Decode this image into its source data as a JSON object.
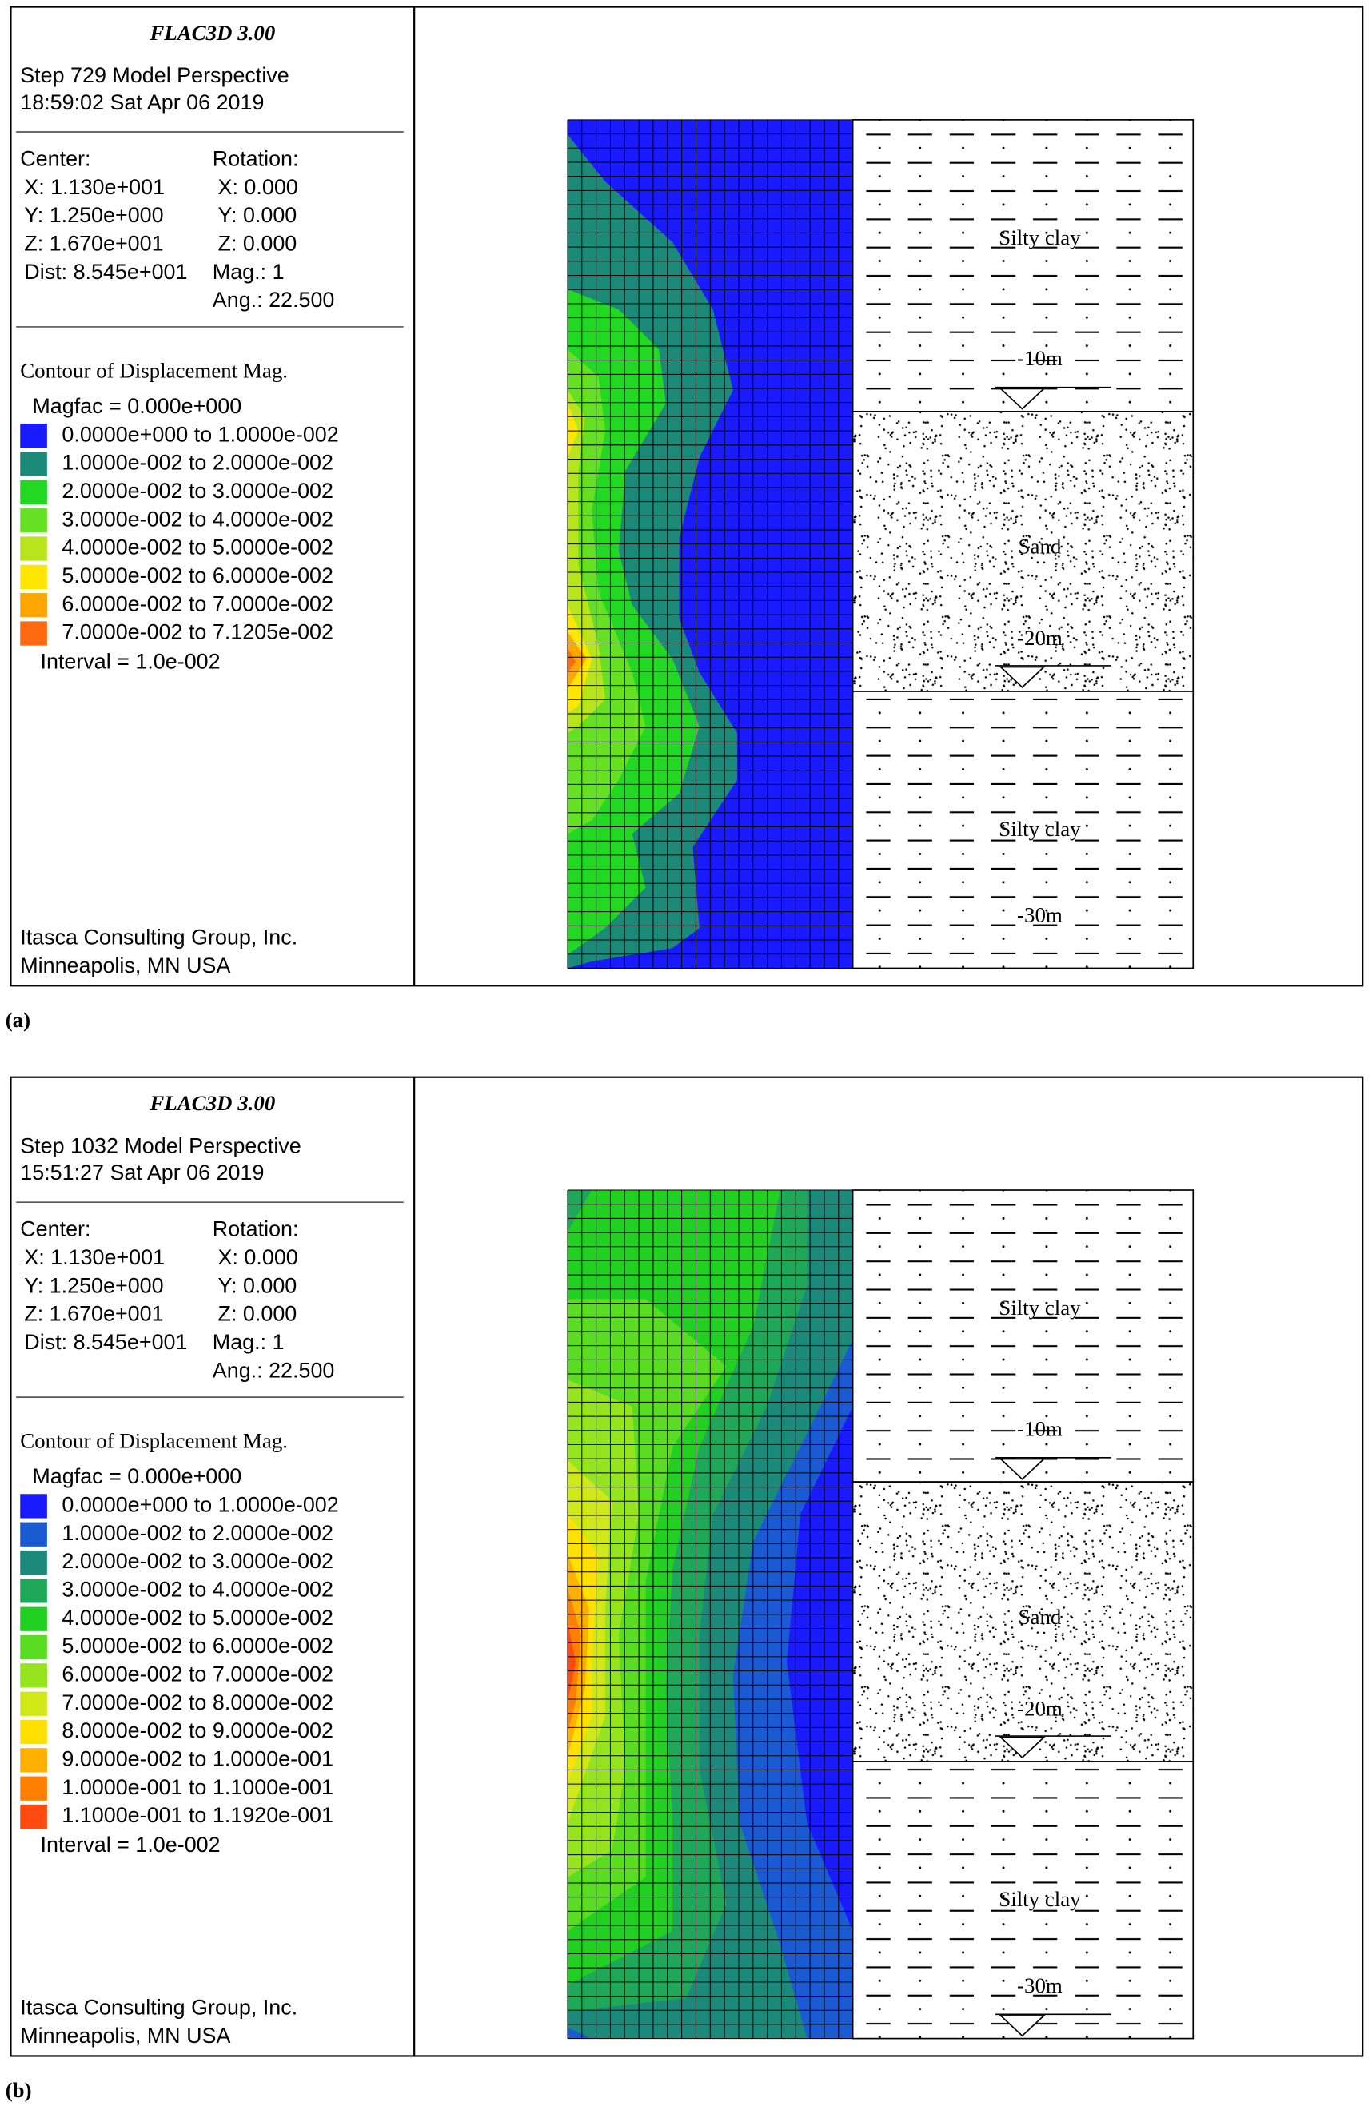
{
  "panels": [
    {
      "caption": "(a)",
      "header": {
        "title": "FLAC3D 3.00",
        "step": "Step 729  Model Perspective",
        "time": "18:59:02 Sat Apr 06 2019"
      },
      "view": {
        "left": [
          "Center:",
          "X: 1.130e+001",
          "Y: 1.250e+000",
          "Z: 1.670e+001",
          "Dist: 8.545e+001"
        ],
        "right": [
          "Rotation:",
          "X:  0.000",
          "Y:  0.000",
          "Z:  0.000",
          "Mag.:      1",
          "Ang.:  22.500"
        ]
      },
      "legend": {
        "title": "Contour of Displacement Mag.",
        "magfac": "Magfac =  0.000e+000",
        "entries": [
          {
            "label": "0.0000e+000 to  1.0000e-002",
            "color": "#1a1aff"
          },
          {
            "label": "1.0000e-002 to  2.0000e-002",
            "color": "#1b8a78"
          },
          {
            "label": "2.0000e-002 to  3.0000e-002",
            "color": "#22d822"
          },
          {
            "label": "3.0000e-002 to  4.0000e-002",
            "color": "#66e022"
          },
          {
            "label": "4.0000e-002 to  5.0000e-002",
            "color": "#b8e41c"
          },
          {
            "label": "5.0000e-002 to  6.0000e-002",
            "color": "#ffe600"
          },
          {
            "label": "6.0000e-002 to  7.0000e-002",
            "color": "#ffa600"
          },
          {
            "label": "7.0000e-002 to  7.1205e-002",
            "color": "#ff6a10"
          }
        ],
        "interval": "Interval =  1.0e-002"
      },
      "footer": [
        "Itasca Consulting Group, Inc.",
        "Minneapolis, MN  USA"
      ],
      "layers": [
        "Silty clay",
        "-10m",
        "Sand",
        "-20m",
        "Silty clay",
        "-30m"
      ]
    },
    {
      "caption": "(b)",
      "header": {
        "title": "FLAC3D 3.00",
        "step": "Step 1032  Model Perspective",
        "time": "15:51:27 Sat Apr 06 2019"
      },
      "view": {
        "left": [
          "Center:",
          "X: 1.130e+001",
          "Y: 1.250e+000",
          "Z: 1.670e+001",
          "Dist: 8.545e+001"
        ],
        "right": [
          "Rotation:",
          "X:  0.000",
          "Y:  0.000",
          "Z:  0.000",
          "Mag.:      1",
          "Ang.:  22.500"
        ]
      },
      "legend": {
        "title": "Contour of Displacement Mag.",
        "magfac": "Magfac =  0.000e+000",
        "entries": [
          {
            "label": "0.0000e+000 to  1.0000e-002",
            "color": "#1a1aff"
          },
          {
            "label": "1.0000e-002 to  2.0000e-002",
            "color": "#1a5ad2"
          },
          {
            "label": "2.0000e-002 to  3.0000e-002",
            "color": "#1b8a7a"
          },
          {
            "label": "3.0000e-002 to  4.0000e-002",
            "color": "#1fa85a"
          },
          {
            "label": "4.0000e-002 to  5.0000e-002",
            "color": "#22d022"
          },
          {
            "label": "5.0000e-002 to  6.0000e-002",
            "color": "#5adc22"
          },
          {
            "label": "6.0000e-002 to  7.0000e-002",
            "color": "#96e41e"
          },
          {
            "label": "7.0000e-002 to  8.0000e-002",
            "color": "#d0e818"
          },
          {
            "label": "8.0000e-002 to  9.0000e-002",
            "color": "#ffe000"
          },
          {
            "label": "9.0000e-002 to  1.0000e-001",
            "color": "#ffb000"
          },
          {
            "label": "1.0000e-001 to  1.1000e-001",
            "color": "#ff8000"
          },
          {
            "label": "1.1000e-001 to  1.1920e-001",
            "color": "#ff4a10"
          }
        ],
        "interval": "Interval =  1.0e-002"
      },
      "footer": [
        "Itasca Consulting Group, Inc.",
        "Minneapolis, MN  USA"
      ],
      "layers": [
        "Silty clay",
        "-10m",
        "Sand",
        "-20m",
        "Silty clay",
        "-30m"
      ]
    }
  ]
}
